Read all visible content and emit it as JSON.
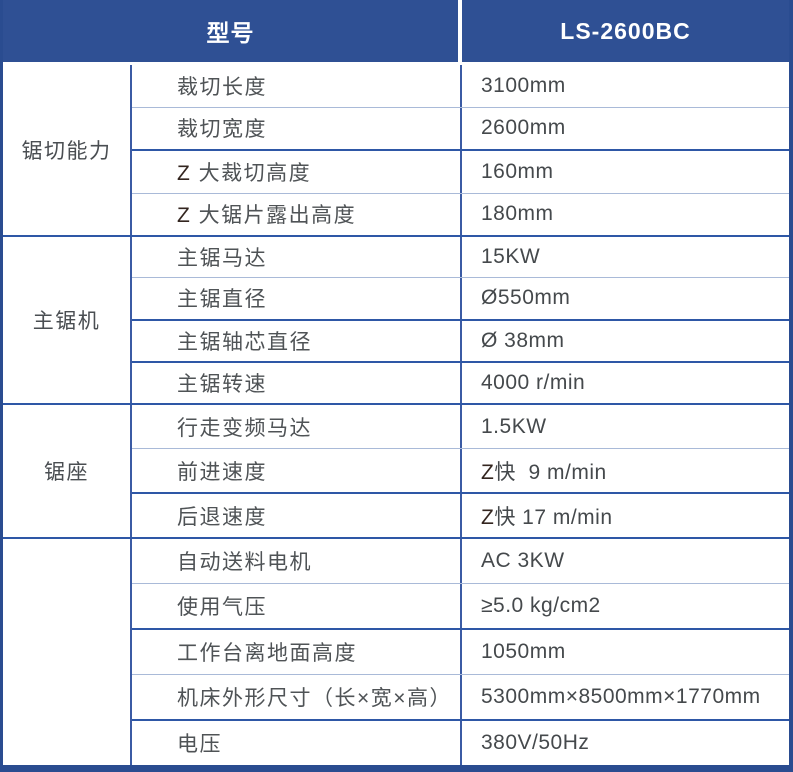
{
  "header": {
    "model_label": "型号",
    "model_value": "LS-2600BC"
  },
  "colors": {
    "header_bg": "#2f5094",
    "outer_border": "#2a4c90",
    "divider_dark": "#2e57a6",
    "divider_light": "#a9bad8",
    "text": "#4f5356"
  },
  "sections": [
    {
      "category": "锯切能力",
      "rows": [
        {
          "label": "裁切长度",
          "value": "3100mm"
        },
        {
          "label": "裁切宽度",
          "value": "2600mm"
        },
        {
          "label": "Z 大裁切高度",
          "value": "160mm"
        },
        {
          "label": "Z 大锯片露出高度",
          "value": "180mm"
        }
      ]
    },
    {
      "category": "主锯机",
      "rows": [
        {
          "label": "主锯马达",
          "value": "15KW"
        },
        {
          "label": "主锯直径",
          "value": "Ø550mm"
        },
        {
          "label": "主锯轴芯直径",
          "value": "Ø 38mm"
        },
        {
          "label": "主锯转速",
          "value": "4000 r/min"
        }
      ]
    },
    {
      "category": "锯座",
      "rows": [
        {
          "label": "行走变频马达",
          "value": "1.5KW"
        },
        {
          "label": "前进速度",
          "value": "Z快  9 m/min"
        },
        {
          "label": "后退速度",
          "value": "Z快 17 m/min"
        }
      ]
    },
    {
      "category": "",
      "rows": [
        {
          "label": "自动送料电机",
          "value": "AC 3KW"
        },
        {
          "label": "使用气压",
          "value": "≥5.0 kg/cm2"
        },
        {
          "label": "工作台离地面高度",
          "value": "1050mm"
        },
        {
          "label": "机床外形尺寸（长×宽×高）",
          "value": "5300mm×8500mm×1770mm"
        },
        {
          "label": "电压",
          "value": "380V/50Hz"
        }
      ]
    }
  ]
}
